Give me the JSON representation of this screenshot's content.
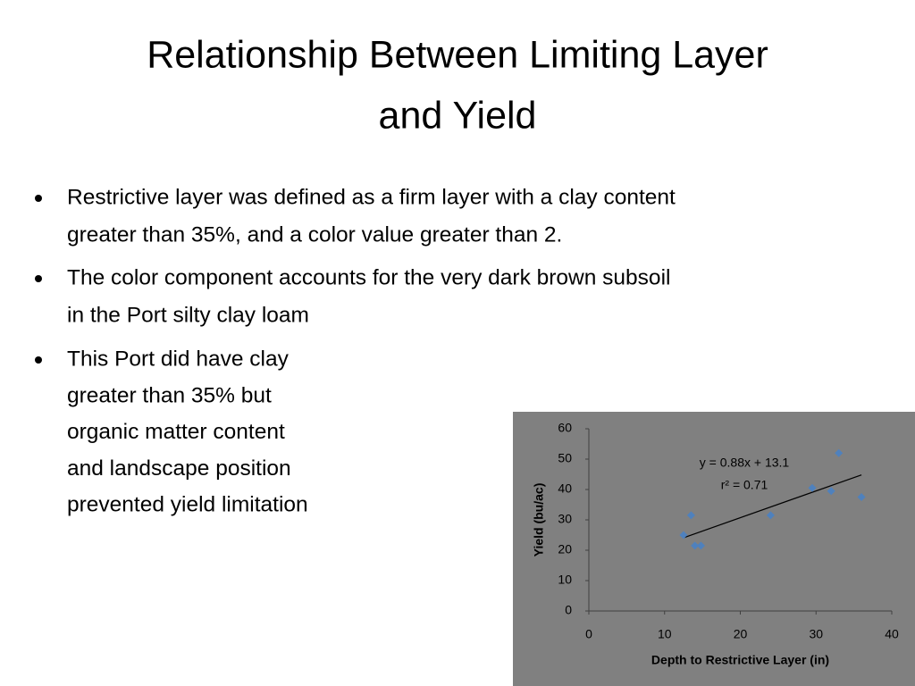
{
  "title_lines": [
    "Relationship Between Limiting Layer",
    "and Yield"
  ],
  "bullets": [
    [
      "Restrictive layer was defined as a firm layer with a clay content",
      "greater than 35%, and a color value greater than 2."
    ],
    [
      "The color component accounts for the very dark brown subsoil",
      "in the Port silty clay loam"
    ],
    [
      "This Port did have clay",
      "greater than 35% but",
      "organic matter content",
      "and landscape position",
      "prevented yield limitation"
    ]
  ],
  "chart_data": {
    "type": "scatter",
    "x": [
      12.5,
      13.5,
      14,
      14.8,
      24,
      29.5,
      32,
      33,
      36
    ],
    "y": [
      25,
      31.5,
      21.5,
      21.5,
      31.5,
      40.5,
      39.5,
      52,
      37.5
    ],
    "color": "#4f81bd",
    "xlim": [
      0,
      40
    ],
    "xticks": [
      0,
      10,
      20,
      30,
      40
    ],
    "ylim": [
      0,
      60
    ],
    "yticks": [
      0,
      10,
      20,
      30,
      40,
      50,
      60
    ],
    "x_label": "Depth to Restrictive Layer (in)",
    "y_label": "Yield (bu/ac)",
    "annotations": [
      "y = 0.88x + 13.1",
      "r² = 0.71"
    ],
    "trendline": {
      "x": [
        12.5,
        36
      ],
      "y": [
        24.1,
        44.8
      ],
      "color": "#000000"
    }
  }
}
